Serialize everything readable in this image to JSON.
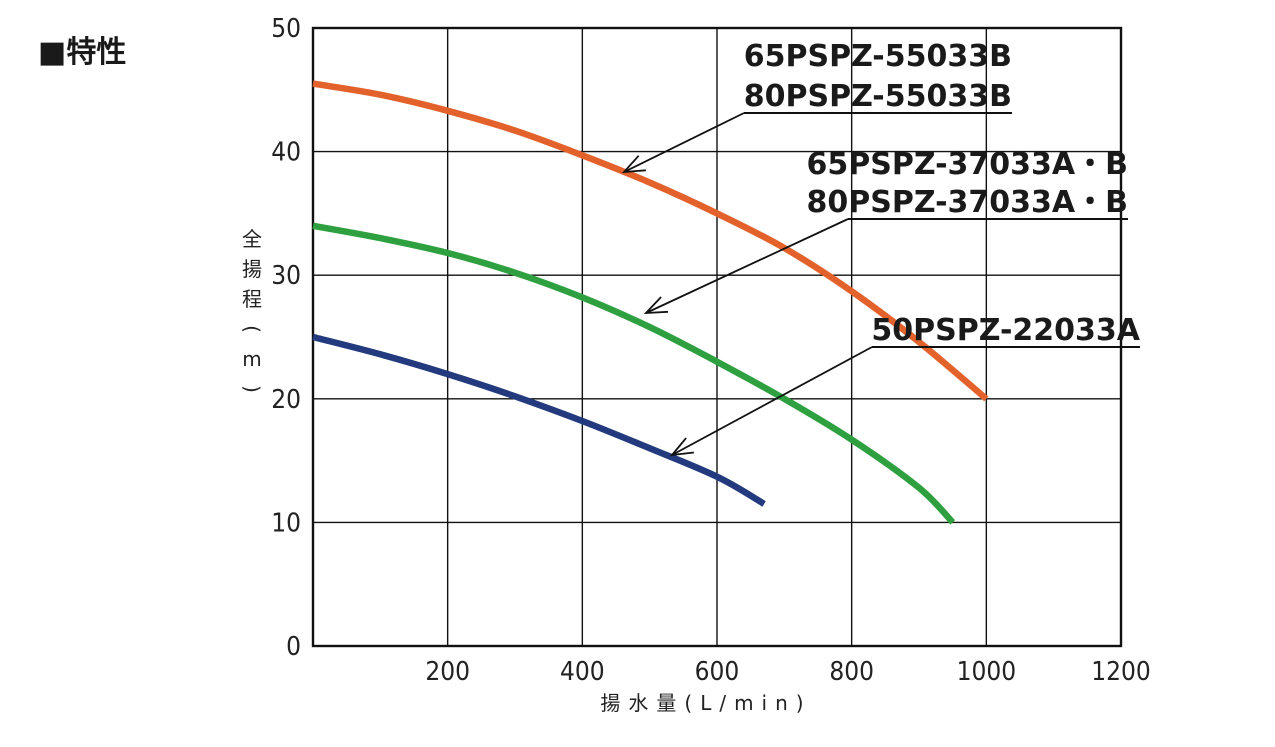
{
  "heading": "■特性",
  "chart_data": {
    "type": "line",
    "xlabel": "揚水量(L/min)",
    "ylabel": "全揚程(m)",
    "xlim": [
      0,
      1200
    ],
    "ylim": [
      0,
      50
    ],
    "xticks": [
      200,
      400,
      600,
      800,
      1000,
      1200
    ],
    "yticks": [
      0,
      10,
      20,
      30,
      40,
      50
    ],
    "grid": true,
    "series": [
      {
        "labels": [
          "65PSPZ-55033B",
          "80PSPZ-55033B"
        ],
        "color": "#e3622c",
        "points": [
          [
            0,
            45.5
          ],
          [
            100,
            44.6
          ],
          [
            200,
            43.3
          ],
          [
            300,
            41.7
          ],
          [
            400,
            39.7
          ],
          [
            500,
            37.5
          ],
          [
            600,
            35.0
          ],
          [
            700,
            32.2
          ],
          [
            800,
            28.7
          ],
          [
            900,
            24.6
          ],
          [
            1000,
            20.0
          ]
        ]
      },
      {
        "labels": [
          "65PSPZ-37033A・B",
          "80PSPZ-37033A・B"
        ],
        "color": "#2ea040",
        "points": [
          [
            0,
            34.0
          ],
          [
            100,
            33.0
          ],
          [
            200,
            31.8
          ],
          [
            300,
            30.2
          ],
          [
            400,
            28.2
          ],
          [
            500,
            25.8
          ],
          [
            600,
            23.0
          ],
          [
            700,
            20.0
          ],
          [
            800,
            16.7
          ],
          [
            900,
            12.8
          ],
          [
            950,
            10.0
          ]
        ]
      },
      {
        "labels": [
          "50PSPZ-22033A"
        ],
        "color": "#233a7e",
        "points": [
          [
            0,
            25.0
          ],
          [
            100,
            23.6
          ],
          [
            200,
            22.0
          ],
          [
            300,
            20.2
          ],
          [
            400,
            18.2
          ],
          [
            500,
            16.0
          ],
          [
            600,
            13.7
          ],
          [
            670,
            11.5
          ]
        ]
      }
    ]
  }
}
